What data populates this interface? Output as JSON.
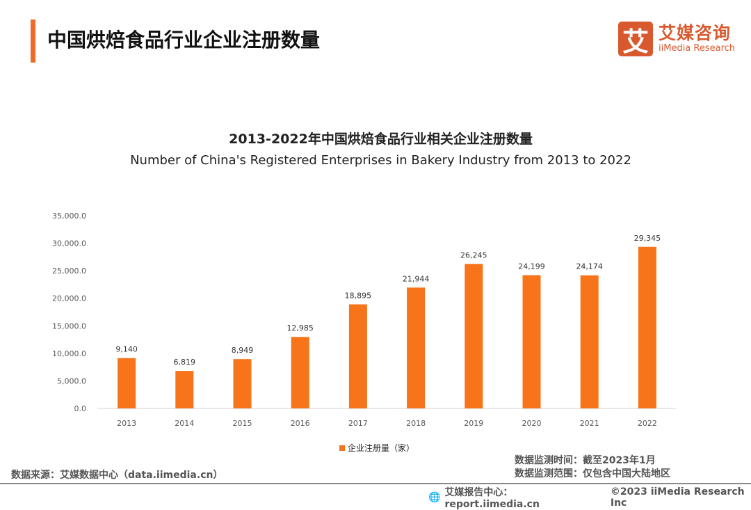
{
  "header": {
    "title": "中国烘焙食品行业企业注册数量",
    "logo_mark": "艾",
    "logo_cn": "艾媒咨询",
    "logo_en": "iiMedia Research"
  },
  "chart_data": {
    "type": "bar",
    "title": "2013-2022年中国烘焙食品行业相关企业注册数量",
    "subtitle": "Number of China's Registered Enterprises in Bakery Industry from 2013 to 2022",
    "categories": [
      "2013",
      "2014",
      "2015",
      "2016",
      "2017",
      "2018",
      "2019",
      "2020",
      "2021",
      "2022"
    ],
    "series": [
      {
        "name": "企业注册量（家）",
        "values": [
          9140,
          6819,
          8949,
          12985,
          18895,
          21944,
          26245,
          24199,
          24174,
          29345
        ]
      }
    ],
    "data_labels": [
      "9,140",
      "6,819",
      "8,949",
      "12,985",
      "18,895",
      "21,944",
      "26,245",
      "24,199",
      "24,174",
      "29,345"
    ],
    "yticks": [
      "0.0",
      "5,000.0",
      "10,000.0",
      "15,000.0",
      "20,000.0",
      "25,000.0",
      "30,000.0",
      "35,000.0"
    ],
    "ylim": [
      0,
      35000
    ],
    "grid": false,
    "legend_position": "bottom",
    "color": "#f7741b"
  },
  "footer": {
    "source": "数据来源：艾媒数据中心（data.iimedia.cn）",
    "time": "数据监测时间：截至2023年1月",
    "scope": "数据监测范围：仅包含中国大陆地区",
    "report": "艾媒报告中心：report.iimedia.cn",
    "copyright": "©2023 iiMedia Research  Inc"
  }
}
